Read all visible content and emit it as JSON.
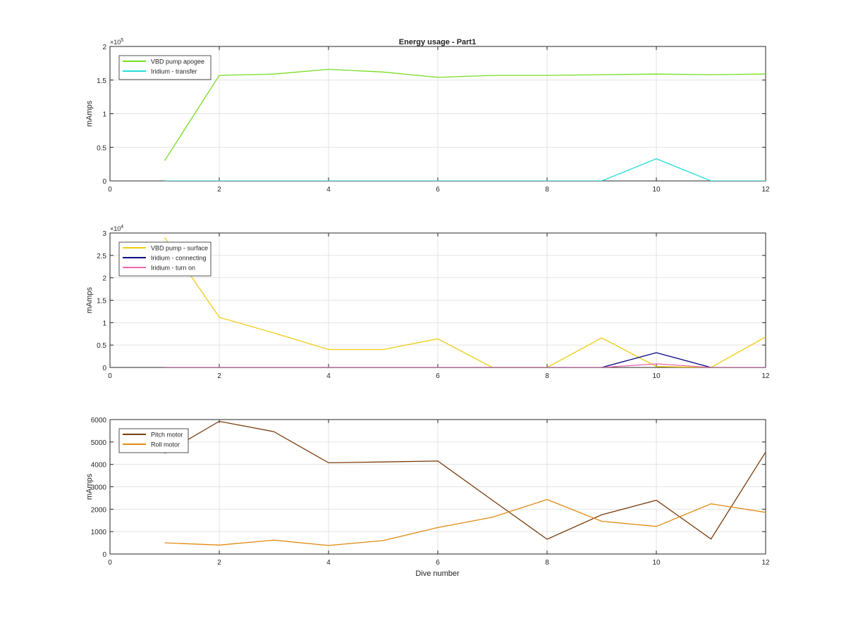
{
  "figure": {
    "title": "Energy usage - Part1",
    "xlabel": "Dive number"
  },
  "chart_data": [
    {
      "type": "line",
      "title": "Energy usage - Part1",
      "xlabel": "",
      "ylabel": "mAmps",
      "xlim": [
        0,
        12
      ],
      "ylim": [
        0,
        200000
      ],
      "xticks": [
        0,
        2,
        4,
        6,
        8,
        10,
        12
      ],
      "yticks": [
        0,
        50000,
        100000,
        150000,
        200000
      ],
      "ytick_labels": [
        "0",
        "0.5",
        "1",
        "1.5",
        "2"
      ],
      "exponent": "5",
      "grid": true,
      "legend_position": "top-left",
      "x": [
        1,
        2,
        3,
        4,
        5,
        6,
        7,
        8,
        9,
        10,
        11,
        12
      ],
      "series": [
        {
          "name": "VBD pump apogee",
          "color": "#77dd22",
          "values": [
            30000,
            157000,
            159000,
            166000,
            162000,
            154000,
            157000,
            157000,
            158000,
            159000,
            158000,
            159000
          ]
        },
        {
          "name": "Iridium - transfer",
          "color": "#22dddd",
          "values": [
            0,
            0,
            0,
            0,
            0,
            0,
            0,
            0,
            0,
            33000,
            0,
            0
          ]
        }
      ]
    },
    {
      "type": "line",
      "title": "",
      "xlabel": "",
      "ylabel": "mAmps",
      "xlim": [
        0,
        12
      ],
      "ylim": [
        0,
        30000
      ],
      "xticks": [
        0,
        2,
        4,
        6,
        8,
        10,
        12
      ],
      "yticks": [
        0,
        5000,
        10000,
        15000,
        20000,
        25000,
        30000
      ],
      "ytick_labels": [
        "0",
        "0.5",
        "1",
        "1.5",
        "2",
        "2.5",
        "3"
      ],
      "exponent": "4",
      "grid": true,
      "legend_position": "top-left",
      "x": [
        1,
        2,
        3,
        4,
        5,
        6,
        7,
        8,
        9,
        10,
        11,
        12
      ],
      "series": [
        {
          "name": "VBD pump - surface",
          "color": "#eecc11",
          "values": [
            29000,
            11200,
            7700,
            4000,
            4000,
            6400,
            0,
            0,
            6600,
            200,
            0,
            6800
          ]
        },
        {
          "name": "Iridium - connecting",
          "color": "#000080",
          "values": [
            0,
            0,
            0,
            0,
            0,
            0,
            0,
            0,
            0,
            3300,
            0,
            0
          ]
        },
        {
          "name": "Iridium - turn on",
          "color": "#ee66aa",
          "values": [
            0,
            0,
            0,
            0,
            0,
            0,
            0,
            0,
            0,
            800,
            0,
            0
          ]
        }
      ]
    },
    {
      "type": "line",
      "title": "",
      "xlabel": "Dive number",
      "ylabel": "mAmps",
      "xlim": [
        0,
        12
      ],
      "ylim": [
        0,
        6000
      ],
      "xticks": [
        0,
        2,
        4,
        6,
        8,
        10,
        12
      ],
      "yticks": [
        0,
        1000,
        2000,
        3000,
        4000,
        5000,
        6000
      ],
      "ytick_labels": [
        "0",
        "1000",
        "2000",
        "3000",
        "4000",
        "5000",
        "6000"
      ],
      "exponent": "",
      "grid": true,
      "legend_position": "top-left",
      "x": [
        1,
        2,
        3,
        4,
        5,
        6,
        7,
        8,
        9,
        10,
        11,
        12
      ],
      "series": [
        {
          "name": "Pitch motor",
          "color": "#7a3b0a",
          "values": [
            4500,
            5920,
            5460,
            4070,
            4110,
            4150,
            2400,
            660,
            1750,
            2400,
            670,
            4550
          ]
        },
        {
          "name": "Roll motor",
          "color": "#e08a10",
          "values": [
            500,
            400,
            620,
            380,
            600,
            1180,
            1640,
            2430,
            1460,
            1230,
            2240,
            1860
          ]
        }
      ]
    }
  ]
}
